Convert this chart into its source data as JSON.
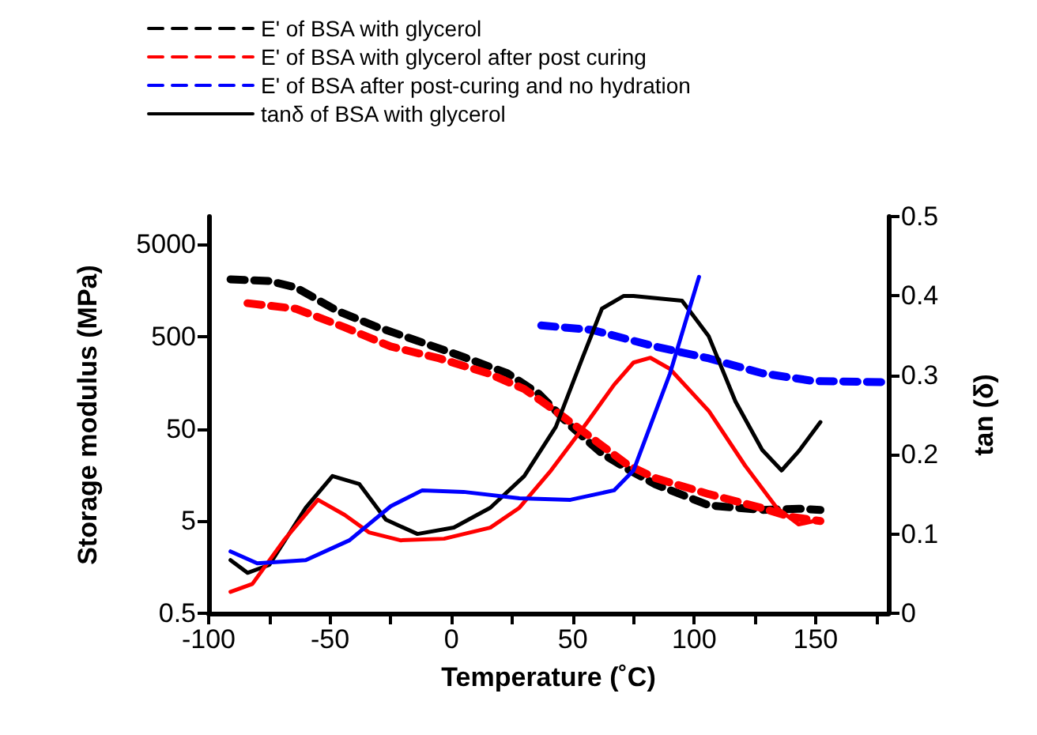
{
  "chart_data": {
    "type": "line",
    "xlabel": "Temperature (˚C)",
    "ylabel": "Storage modulus (MPa)",
    "y2label": "tan (δ)",
    "xlim": [
      -100,
      180
    ],
    "xticks": [
      -100,
      {
        "value": -75,
        "label": null
      },
      -50,
      {
        "value": -25,
        "label": null
      },
      0,
      {
        "value": 25,
        "label": null
      },
      50,
      {
        "value": 75,
        "label": null
      },
      100,
      {
        "value": 125,
        "label": null
      },
      150,
      {
        "value": 175,
        "label": null
      }
    ],
    "ylim": [
      0.5,
      10000
    ],
    "yticks": [
      0.5,
      5,
      50,
      500,
      5000
    ],
    "log": "y",
    "y2lim": [
      0,
      0.5
    ],
    "y2ticks": [
      0,
      0.1,
      0.2,
      0.3,
      0.4,
      0.5
    ],
    "legend": "top left",
    "grid": false,
    "marker": "none",
    "series": [
      {
        "name": "E' of BSA with glycerol",
        "color": "#000000",
        "line_style": "dashed",
        "x": [
          -91,
          -75,
          -64,
          -47,
          -31,
          -14,
          5,
          23,
          36,
          49,
          62,
          73,
          84,
          106,
          128,
          143,
          152
        ],
        "values": [
          2085,
          2000,
          1700,
          950,
          640,
          450,
          300,
          200,
          120,
          54,
          27,
          18,
          12.5,
          7.4,
          6.6,
          6.8,
          6.6
        ]
      },
      {
        "name": "E' of BSA with glycerol after post curing",
        "color": "#ff0000",
        "line_style": "dashed",
        "x": [
          -84,
          -64,
          -44,
          -25,
          -5,
          15,
          30,
          45,
          60,
          73,
          84,
          106,
          128,
          139,
          152
        ],
        "values": [
          1150,
          1000,
          630,
          390,
          290,
          200,
          135,
          71,
          36,
          20,
          14.6,
          9.8,
          6.9,
          5.6,
          5
        ]
      },
      {
        "name": "E' of BSA after post-curing and no hydration",
        "color": "#0000ff",
        "line_style": "dashed",
        "x": [
          37,
          58,
          75,
          84,
          106,
          128,
          149,
          180
        ],
        "values": [
          660,
          590,
          450,
          390,
          290,
          200,
          165,
          160
        ]
      },
      {
        "name": "tanδ of BSA with glycerol",
        "color": "#000000",
        "line_style": "solid",
        "axis": "y2",
        "x": [
          -91,
          -84,
          -75,
          -60,
          -49,
          -38,
          -27,
          -14,
          1,
          16,
          30,
          43,
          54,
          62,
          71,
          75,
          95,
          106,
          117,
          128,
          136,
          143,
          152
        ],
        "values": [
          0.067,
          0.051,
          0.061,
          0.133,
          0.173,
          0.163,
          0.118,
          0.1,
          0.108,
          0.133,
          0.173,
          0.235,
          0.322,
          0.384,
          0.4,
          0.4,
          0.394,
          0.349,
          0.267,
          0.206,
          0.18,
          0.204,
          0.241
        ]
      },
      {
        "color": "#ff0000",
        "line_style": "solid",
        "axis": "y2",
        "x": [
          -91,
          -82,
          -69,
          -55,
          -44,
          -34,
          -21,
          -3,
          16,
          28,
          41,
          56,
          67,
          75,
          82,
          90,
          106,
          121,
          134,
          143,
          152
        ],
        "values": [
          0.027,
          0.037,
          0.092,
          0.143,
          0.124,
          0.102,
          0.092,
          0.094,
          0.108,
          0.133,
          0.18,
          0.241,
          0.288,
          0.316,
          0.322,
          0.308,
          0.255,
          0.186,
          0.133,
          0.112,
          0.118
        ]
      },
      {
        "color": "#0000ff",
        "line_style": "solid",
        "axis": "y2",
        "x": [
          -91,
          -80,
          -60,
          -42,
          -25,
          -12,
          5,
          28,
          49,
          67,
          75,
          90,
          102
        ],
        "values": [
          0.078,
          0.063,
          0.067,
          0.092,
          0.135,
          0.155,
          0.153,
          0.145,
          0.143,
          0.155,
          0.18,
          0.302,
          0.424
        ]
      }
    ]
  }
}
